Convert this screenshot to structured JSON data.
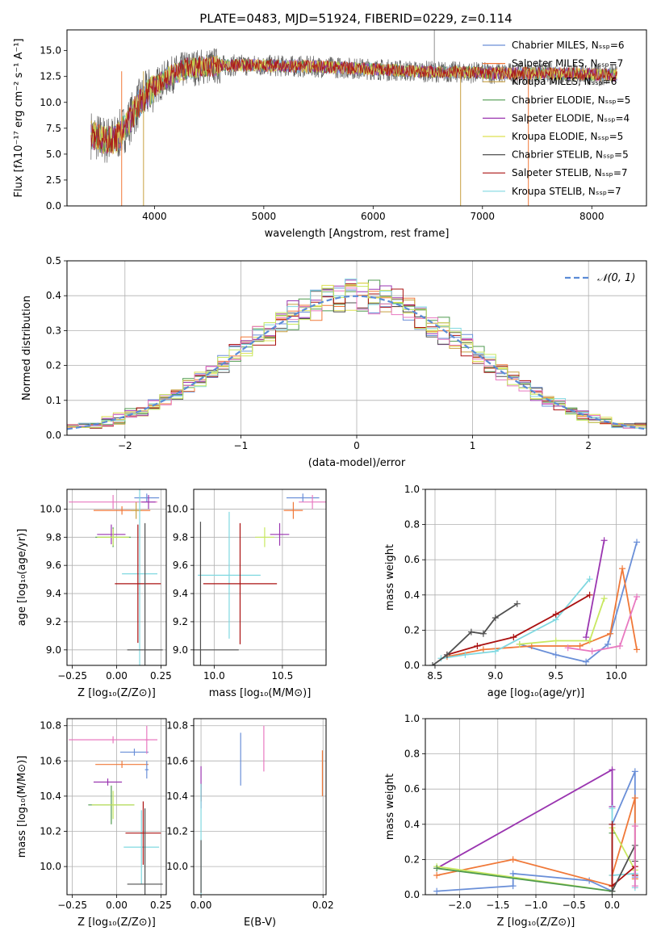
{
  "figure": {
    "title": "PLATE=0483, MJD=51924, FIBERID=0229, z=0.114"
  },
  "chart_data": [
    {
      "id": "spectrum",
      "type": "line",
      "xlabel": "wavelength [Angstrom, rest frame]",
      "ylabel": "Flux [fλ10⁻¹⁷ erg cm⁻² s⁻¹ A⁻¹]",
      "xlim": [
        3200,
        8500
      ],
      "ylim": [
        0,
        17
      ],
      "xticks": [
        "4000",
        "5000",
        "6000",
        "7000",
        "8000"
      ],
      "yticks": [
        "0.0",
        "2.5",
        "5.0",
        "7.5",
        "10.0",
        "12.5",
        "15.0"
      ],
      "legend_position": "top-right",
      "series": [
        {
          "name": "Chabrier MILES, Nₛₛₚ=6",
          "color": "#6a8fd8"
        },
        {
          "name": "Salpeter MILES, Nₛₛₚ=7",
          "color": "#f07838"
        },
        {
          "name": "Kroupa MILES, Nₛₛₚ=6",
          "color": "#c8a040"
        },
        {
          "name": "Chabrier ELODIE, Nₛₛₚ=5",
          "color": "#4f9a4f"
        },
        {
          "name": "Salpeter ELODIE, Nₛₛₚ=4",
          "color": "#9a35b0"
        },
        {
          "name": "Kroupa ELODIE, Nₛₛₚ=5",
          "color": "#dde050"
        },
        {
          "name": "Chabrier STELIB, Nₛₛₚ=5",
          "color": "#505050"
        },
        {
          "name": "Salpeter STELIB, Nₛₛₚ=7",
          "color": "#aa1010"
        },
        {
          "name": "Kroupa STELIB, Nₛₛₚ=7",
          "color": "#80d8e0"
        }
      ],
      "continuum": {
        "x": [
          3420,
          3550,
          3650,
          3750,
          3850,
          3950,
          4050,
          4150,
          4300,
          4500,
          4800,
          5200,
          5600,
          6000,
          6400,
          6800,
          7200,
          7600,
          8000,
          8230
        ],
        "y": [
          6.9,
          6.3,
          6.5,
          7.8,
          9.8,
          11.0,
          11.9,
          12.6,
          13.3,
          13.5,
          13.6,
          13.5,
          13.4,
          13.2,
          13.0,
          12.9,
          12.8,
          12.8,
          12.7,
          12.6
        ]
      }
    },
    {
      "id": "residuals",
      "type": "histogram",
      "xlabel": "(data-model)/error",
      "ylabel": "Normed distribution",
      "xlim": [
        -2.5,
        2.5
      ],
      "ylim": [
        0,
        0.5
      ],
      "xticks": [
        "−2",
        "−1",
        "0",
        "1",
        "2"
      ],
      "yticks": [
        "0.0",
        "0.1",
        "0.2",
        "0.3",
        "0.4",
        "0.5"
      ],
      "legend_position": "top-right",
      "legend": [
        {
          "name": "𝒩(0, 1)",
          "color": "#5b8bd6"
        }
      ],
      "bin_edges": [
        -2.5,
        2.5
      ],
      "bin_width": 0.1
    },
    {
      "id": "age-vs-Z",
      "type": "scatter",
      "xlabel": "Z [log₁₀(Z/Z⊙)]",
      "ylabel": "age  [log₁₀(age/yr)]",
      "xlim": [
        -0.28,
        0.28
      ],
      "ylim": [
        8.89,
        10.14
      ],
      "xticks": [
        "−0.25",
        "0.00",
        "0.25"
      ],
      "yticks": [
        "9.0",
        "9.2",
        "9.4",
        "9.6",
        "9.8",
        "10.0"
      ],
      "points": [
        {
          "x": 0.17,
          "y": 10.08,
          "xerr": 0.07,
          "yerr": 0.03,
          "color": "#6a8fd8"
        },
        {
          "x": 0.03,
          "y": 9.99,
          "xerr": 0.16,
          "yerr": 0.03,
          "color": "#f07838"
        },
        {
          "x": -0.02,
          "y": 10.05,
          "xerr": 0.25,
          "yerr": 0.05,
          "color": "#e878c0"
        },
        {
          "x": 0.18,
          "y": 10.05,
          "xerr": 0.04,
          "yerr": 0.05,
          "color": "#9a35b0"
        },
        {
          "x": -0.03,
          "y": 9.82,
          "xerr": 0.08,
          "yerr": 0.07,
          "color": "#9a35b0"
        },
        {
          "x": -0.02,
          "y": 9.8,
          "xerr": 0.1,
          "yerr": 0.07,
          "color": "#4f9a4f"
        },
        {
          "x": -0.02,
          "y": 9.8,
          "xerr": 0.09,
          "yerr": 0.06,
          "color": "#c8e860"
        },
        {
          "x": 0.11,
          "y": 9.99,
          "xerr": 0.03,
          "yerr": 0.06,
          "color": "#c8a040"
        },
        {
          "x": 0.13,
          "y": 9.54,
          "xerr": 0.1,
          "yerr": 0.66,
          "color": "#80d8e0"
        },
        {
          "x": 0.12,
          "y": 9.47,
          "xerr": 0.13,
          "yerr": 0.42,
          "color": "#aa1010"
        },
        {
          "x": 0.16,
          "y": 9.0,
          "xerr": 0.1,
          "yerr": 0.9,
          "color": "#505050"
        }
      ]
    },
    {
      "id": "age-vs-mass",
      "type": "scatter",
      "xlabel": "mass [log₁₀(M/M⊙)]",
      "ylabel": "",
      "xlim": [
        9.85,
        10.82
      ],
      "ylim": [
        8.89,
        10.14
      ],
      "xticks": [
        "10.0",
        "10.5"
      ],
      "yticks": [
        "9.0",
        "9.2",
        "9.4",
        "9.6",
        "9.8",
        "10.0"
      ],
      "points": [
        {
          "x": 10.65,
          "y": 10.08,
          "xerr": 0.12,
          "yerr": 0.03,
          "color": "#6a8fd8"
        },
        {
          "x": 10.58,
          "y": 9.99,
          "xerr": 0.07,
          "yerr": 0.06,
          "color": "#f07838"
        },
        {
          "x": 10.72,
          "y": 10.05,
          "xerr": 0.1,
          "yerr": 0.05,
          "color": "#e878c0"
        },
        {
          "x": 10.48,
          "y": 9.82,
          "xerr": 0.07,
          "yerr": 0.08,
          "color": "#9a35b0"
        },
        {
          "x": 10.37,
          "y": 9.8,
          "xerr": 0.07,
          "yerr": 0.07,
          "color": "#c8e860"
        },
        {
          "x": 10.11,
          "y": 9.53,
          "xerr": 0.23,
          "yerr": 0.45,
          "color": "#80d8e0"
        },
        {
          "x": 10.19,
          "y": 9.47,
          "xerr": 0.27,
          "yerr": 0.43,
          "color": "#aa1010"
        },
        {
          "x": 9.9,
          "y": 9.0,
          "xerr": 0.28,
          "yerr": 0.91,
          "color": "#505050"
        }
      ]
    },
    {
      "id": "weight-vs-age",
      "type": "line",
      "xlabel": "age  [log₁₀(age/yr)]",
      "ylabel": "mass weight",
      "xlim": [
        8.42,
        10.25
      ],
      "ylim": [
        0,
        1
      ],
      "xticks": [
        "8.5",
        "9.0",
        "9.5",
        "10.0"
      ],
      "yticks": [
        "0.0",
        "0.2",
        "0.4",
        "0.6",
        "0.8",
        "1.0"
      ],
      "series": [
        {
          "color": "#6a8fd8",
          "x": [
            9.2,
            9.5,
            9.75,
            9.93,
            10.17
          ],
          "y": [
            0.12,
            0.06,
            0.02,
            0.12,
            0.7
          ]
        },
        {
          "color": "#f07838",
          "x": [
            8.6,
            8.9,
            9.3,
            9.7,
            9.95,
            10.05,
            10.17
          ],
          "y": [
            0.05,
            0.09,
            0.11,
            0.11,
            0.18,
            0.55,
            0.09
          ]
        },
        {
          "color": "#e878c0",
          "x": [
            9.6,
            9.8,
            10.03,
            10.17
          ],
          "y": [
            0.1,
            0.08,
            0.11,
            0.39
          ]
        },
        {
          "color": "#9a35b0",
          "x": [
            9.75,
            9.9
          ],
          "y": [
            0.16,
            0.71
          ]
        },
        {
          "color": "#c8e860",
          "x": [
            9.2,
            9.5,
            9.78,
            9.9
          ],
          "y": [
            0.12,
            0.14,
            0.14,
            0.38
          ]
        },
        {
          "color": "#80d8e0",
          "x": [
            8.55,
            8.75,
            9.0,
            9.5,
            9.78
          ],
          "y": [
            0.04,
            0.06,
            0.08,
            0.26,
            0.49
          ]
        },
        {
          "color": "#aa1010",
          "x": [
            8.6,
            8.85,
            9.15,
            9.5,
            9.78
          ],
          "y": [
            0.06,
            0.11,
            0.16,
            0.29,
            0.4
          ]
        },
        {
          "color": "#505050",
          "x": [
            8.48,
            8.6,
            8.8,
            8.9,
            9.0,
            9.18
          ],
          "y": [
            0.0,
            0.06,
            0.19,
            0.18,
            0.27,
            0.35
          ]
        }
      ]
    },
    {
      "id": "mass-vs-Z",
      "type": "scatter",
      "xlabel": "Z [log₁₀(Z/Z⊙)]",
      "ylabel": "mass [log₁₀(M/M⊙)]",
      "xlim": [
        -0.28,
        0.28
      ],
      "ylim": [
        9.84,
        10.84
      ],
      "xticks": [
        "−0.25",
        "0.00",
        "0.25"
      ],
      "yticks": [
        "10.0",
        "10.2",
        "10.4",
        "10.6",
        "10.8"
      ],
      "points": [
        {
          "x": 0.1,
          "y": 10.65,
          "xerr": 0.08,
          "yerr": 0.02,
          "color": "#6a8fd8"
        },
        {
          "x": 0.03,
          "y": 10.58,
          "xerr": 0.15,
          "yerr": 0.02,
          "color": "#f07838"
        },
        {
          "x": -0.02,
          "y": 10.72,
          "xerr": 0.25,
          "yerr": 0.02,
          "color": "#e878c0"
        },
        {
          "x": 0.17,
          "y": 10.72,
          "xerr": 0.01,
          "yerr": 0.08,
          "color": "#e878c0"
        },
        {
          "x": 0.17,
          "y": 10.55,
          "xerr": 0.01,
          "yerr": 0.05,
          "color": "#6a8fd8"
        },
        {
          "x": -0.05,
          "y": 10.48,
          "xerr": 0.08,
          "yerr": 0.02,
          "color": "#9a35b0"
        },
        {
          "x": -0.03,
          "y": 10.35,
          "xerr": 0.13,
          "yerr": 0.11,
          "color": "#4f9a4f"
        },
        {
          "x": -0.02,
          "y": 10.35,
          "xerr": 0.12,
          "yerr": 0.08,
          "color": "#c8e860"
        },
        {
          "x": 0.14,
          "y": 10.11,
          "xerr": 0.1,
          "yerr": 0.21,
          "color": "#80d8e0"
        },
        {
          "x": 0.15,
          "y": 10.19,
          "xerr": 0.1,
          "yerr": 0.18,
          "color": "#aa1010"
        },
        {
          "x": 0.16,
          "y": 9.9,
          "xerr": 0.1,
          "yerr": 0.43,
          "color": "#505050"
        }
      ]
    },
    {
      "id": "mass-vs-ebv",
      "type": "scatter",
      "xlabel": "E(B-V)",
      "ylabel": "",
      "xlim": [
        -0.0012,
        0.0205
      ],
      "ylim": [
        9.84,
        10.84
      ],
      "xticks": [
        "0.00",
        "0.02"
      ],
      "yticks": [
        "10.0",
        "10.2",
        "10.4",
        "10.6",
        "10.8"
      ],
      "points": [
        {
          "x": 0.0,
          "y": 10.45,
          "xerr": 0,
          "yerr": 0.12,
          "color": "#9a35b0"
        },
        {
          "x": 0.0,
          "y": 10.42,
          "xerr": 0,
          "yerr": 0.05,
          "color": "#aa1010"
        },
        {
          "x": 0.0,
          "y": 10.15,
          "xerr": 0,
          "yerr": 0.32,
          "color": "#80d8e0"
        },
        {
          "x": 0.0,
          "y": 10.0,
          "xerr": 0,
          "yerr": 0.15,
          "color": "#505050"
        },
        {
          "x": 0.0065,
          "y": 10.61,
          "xerr": 0,
          "yerr": 0.15,
          "color": "#6a8fd8"
        },
        {
          "x": 0.0103,
          "y": 10.67,
          "xerr": 0,
          "yerr": 0.13,
          "color": "#e878c0"
        },
        {
          "x": 0.0199,
          "y": 10.53,
          "xerr": 0,
          "yerr": 0.13,
          "color": "#f07838"
        }
      ]
    },
    {
      "id": "weight-vs-Z",
      "type": "line",
      "xlabel": "Z [log₁₀(Z/Z⊙)]",
      "ylabel": "mass weight",
      "xlim": [
        -2.45,
        0.45
      ],
      "ylim": [
        0,
        1
      ],
      "xticks": [
        "−2.0",
        "−1.5",
        "−1.0",
        "−0.5",
        "0.0"
      ],
      "yticks": [
        "0.0",
        "0.2",
        "0.4",
        "0.6",
        "0.8",
        "1.0"
      ],
      "series": [
        {
          "color": "#6a8fd8",
          "x": [
            -2.3,
            -1.3,
            -1.3,
            -0.3,
            0.0,
            0.0,
            0.3,
            0.3
          ],
          "y": [
            0.02,
            0.05,
            0.12,
            0.08,
            0.02,
            0.4,
            0.7,
            0.1
          ]
        },
        {
          "color": "#f07838",
          "x": [
            -2.3,
            -1.3,
            0.0,
            0.0,
            0.3,
            0.3
          ],
          "y": [
            0.11,
            0.2,
            0.05,
            0.11,
            0.55,
            0.09
          ]
        },
        {
          "color": "#9a35b0",
          "x": [
            -2.3,
            0.0,
            0.0
          ],
          "y": [
            0.15,
            0.71,
            0.5
          ]
        },
        {
          "color": "#c8e860",
          "x": [
            -2.3,
            0.0,
            0.0,
            0.3
          ],
          "y": [
            0.16,
            0.02,
            0.38,
            0.14
          ]
        },
        {
          "color": "#4f9a4f",
          "x": [
            -2.3,
            0.0,
            0.0
          ],
          "y": [
            0.15,
            0.02,
            0.35
          ]
        },
        {
          "color": "#80d8e0",
          "x": [
            0.0,
            0.0,
            0.3,
            0.3
          ],
          "y": [
            0.49,
            0.11,
            0.12,
            0.04
          ]
        },
        {
          "color": "#aa1010",
          "x": [
            0.0,
            0.0,
            0.3,
            0.3
          ],
          "y": [
            0.4,
            0.05,
            0.16,
            0.11
          ]
        },
        {
          "color": "#505050",
          "x": [
            0.0,
            0.3,
            0.3
          ],
          "y": [
            0.02,
            0.28,
            0.19
          ]
        },
        {
          "color": "#e878c0",
          "x": [
            0.3,
            0.3
          ],
          "y": [
            0.39,
            0.05
          ]
        }
      ]
    }
  ]
}
